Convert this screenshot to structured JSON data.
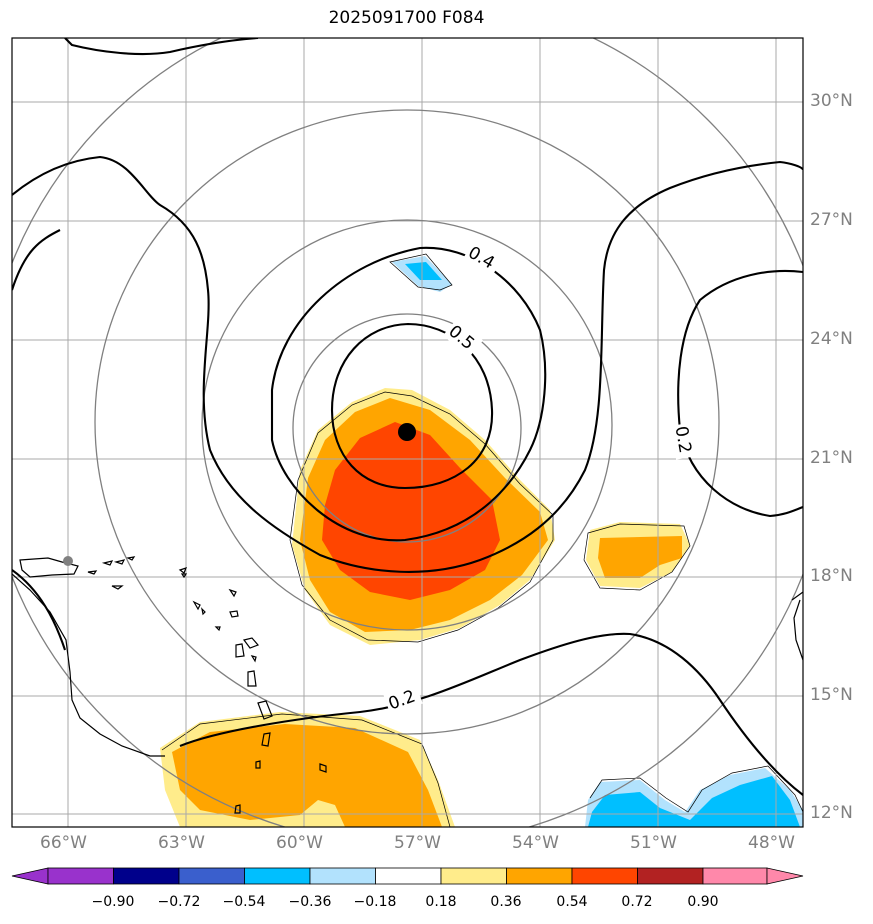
{
  "title": "2025091700 F084",
  "lon_labels": [
    "66°W",
    "63°W",
    "60°W",
    "57°W",
    "54°W",
    "51°W",
    "48°W"
  ],
  "lat_labels": [
    "30°N",
    "27°N",
    "24°N",
    "21°N",
    "18°N",
    "15°N",
    "12°N"
  ],
  "contour_labels": [
    "0.4",
    "0.5",
    "0.2",
    "0.2"
  ],
  "colorbar": {
    "ticks": [
      "−0.90",
      "−0.72",
      "−0.54",
      "−0.36",
      "−0.18",
      "0.18",
      "0.36",
      "0.54",
      "0.72",
      "0.90"
    ],
    "colors": [
      "#9932cc",
      "#00008b",
      "#3a5fcd",
      "#00bfff",
      "#b2e2fd",
      "#ffffff",
      "#ffec8b",
      "#ffa500",
      "#ff4500",
      "#b22222",
      "#ff88aa"
    ]
  },
  "storm_center": {
    "lat": 21.6,
    "lon": -57.4
  }
}
